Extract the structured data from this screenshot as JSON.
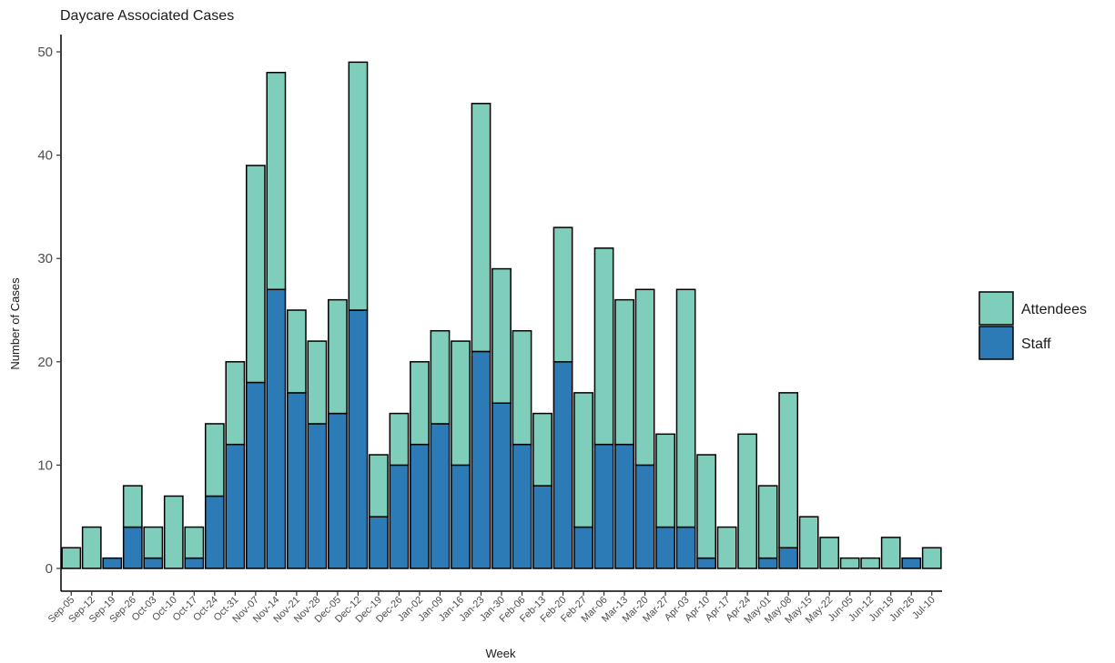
{
  "chart_data": {
    "type": "bar",
    "stacked": true,
    "title": "Daycare Associated Cases",
    "xlabel": "Week",
    "ylabel": "Number of Cases",
    "ylim": [
      0,
      50
    ],
    "yticks": [
      0,
      10,
      20,
      30,
      40,
      50
    ],
    "grid": false,
    "legend": "right",
    "categories": [
      "Sep-05",
      "Sep-12",
      "Sep-19",
      "Sep-26",
      "Oct-03",
      "Oct-10",
      "Oct-17",
      "Oct-24",
      "Oct-31",
      "Nov-07",
      "Nov-14",
      "Nov-21",
      "Nov-28",
      "Dec-05",
      "Dec-12",
      "Dec-19",
      "Dec-26",
      "Jan-02",
      "Jan-09",
      "Jan-16",
      "Jan-23",
      "Jan-30",
      "Feb-06",
      "Feb-13",
      "Feb-20",
      "Feb-27",
      "Mar-06",
      "Mar-13",
      "Mar-20",
      "Mar-27",
      "Apr-03",
      "Apr-10",
      "Apr-17",
      "Apr-24",
      "May-01",
      "May-08",
      "May-15",
      "May-22",
      "Jun-05",
      "Jun-12",
      "Jun-19",
      "Jun-26",
      "Jul-10"
    ],
    "series": [
      {
        "name": "Staff",
        "color": "#2c7bb6",
        "values": [
          0,
          0,
          1,
          4,
          1,
          0,
          1,
          7,
          12,
          18,
          27,
          17,
          14,
          15,
          25,
          5,
          10,
          12,
          14,
          10,
          21,
          16,
          12,
          8,
          20,
          4,
          12,
          12,
          10,
          4,
          4,
          1,
          0,
          0,
          1,
          2,
          0,
          0,
          0,
          0,
          0,
          1,
          0
        ]
      },
      {
        "name": "Attendees",
        "color": "#7fcdbb",
        "values": [
          2,
          4,
          0,
          4,
          3,
          7,
          3,
          7,
          8,
          21,
          21,
          8,
          8,
          11,
          24,
          6,
          5,
          8,
          9,
          12,
          24,
          13,
          11,
          7,
          13,
          13,
          19,
          14,
          17,
          9,
          23,
          10,
          4,
          13,
          7,
          15,
          5,
          3,
          1,
          1,
          3,
          0,
          2
        ]
      }
    ],
    "legend_order": [
      "Attendees",
      "Staff"
    ]
  }
}
